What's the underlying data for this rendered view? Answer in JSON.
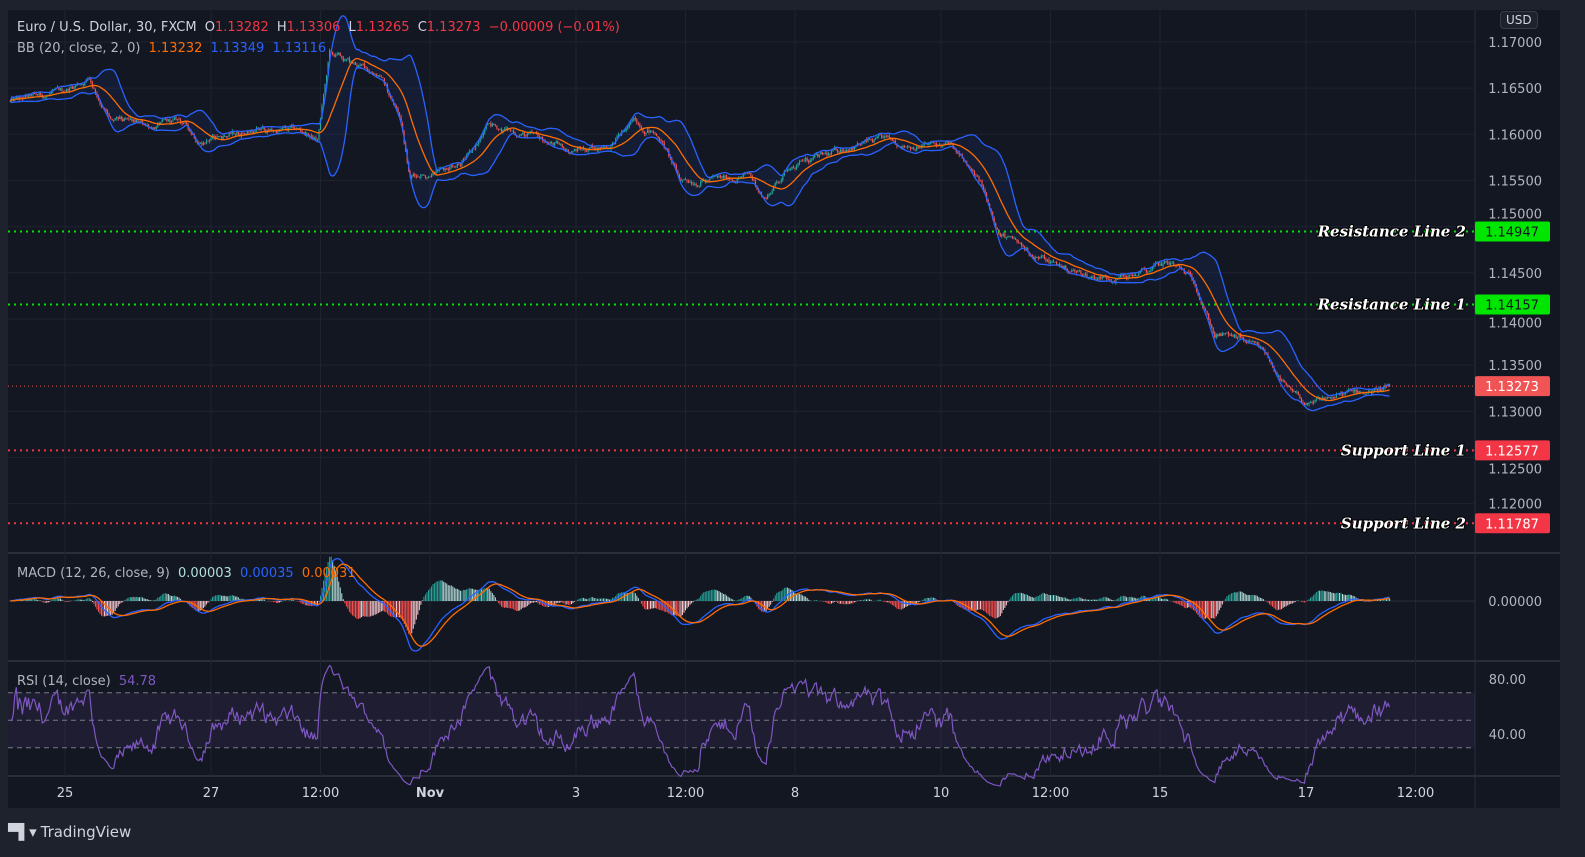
{
  "header": {
    "symbol": "Euro / U.S. Dollar, 30, FXCM",
    "open_label": "O",
    "open": "1.13282",
    "high_label": "H",
    "high": "1.13306",
    "low_label": "L",
    "low": "1.13265",
    "close_label": "C",
    "close": "1.13273",
    "change": "−0.00009 (−0.01%)"
  },
  "bb_legend": {
    "label": "BB (20, close, 2, 0)",
    "basis": "1.13232",
    "upper": "1.13349",
    "lower": "1.13116"
  },
  "macd_legend": {
    "label": "MACD (12, 26, close, 9)",
    "hist": "0.00003",
    "macd": "0.00035",
    "signal": "0.00031"
  },
  "rsi_legend": {
    "label": "RSI (14, close)",
    "value": "54.78"
  },
  "currency": "USD",
  "footer": {
    "brand": "TradingView"
  },
  "colors": {
    "up": "#26a69a",
    "down": "#ef5350",
    "bb_basis": "#ff6d00",
    "bb_band": "#2962ff",
    "macd": "#2962ff",
    "signal": "#ff6d00",
    "rsi": "#7e57c2",
    "resistance": "#00e600",
    "support": "#f23645",
    "last_price": "#f05454"
  },
  "chart_data": {
    "type": "candlestick",
    "ylim": [
      1.11465,
      1.17346
    ],
    "grid": true,
    "price_ticks": [
      "1.17000",
      "1.16500",
      "1.16000",
      "1.15500",
      "1.15000",
      "1.14500",
      "1.14000",
      "1.13500",
      "1.13000",
      "1.12500",
      "1.12000"
    ],
    "time_ticks": [
      {
        "label": "25",
        "t": "Oct 25 00:00"
      },
      {
        "label": "27",
        "t": "Oct 27 00:00"
      },
      {
        "label": "12:00",
        "t": "Oct 28 12:00"
      },
      {
        "label": "Nov",
        "t": "Nov 1 00:00"
      },
      {
        "label": "3",
        "t": "Nov 3 00:00"
      },
      {
        "label": "12:00",
        "t": "Nov 4 12:00"
      },
      {
        "label": "8",
        "t": "Nov 8 00:00"
      },
      {
        "label": "10",
        "t": "Nov 10 00:00"
      },
      {
        "label": "12:00",
        "t": "Nov 11 12:00"
      },
      {
        "label": "15",
        "t": "Nov 15 00:00"
      },
      {
        "label": "17",
        "t": "Nov 17 00:00"
      },
      {
        "label": "12:00",
        "t": "Nov 18 12:00"
      }
    ],
    "close_path": [
      {
        "t": "Oct 22 06:00",
        "close": 1.1635
      },
      {
        "t": "Oct 22 22:30",
        "close": 1.1645
      },
      {
        "t": "Oct 25 08:00",
        "close": 1.1661
      },
      {
        "t": "Oct 25 15:00",
        "close": 1.1614
      },
      {
        "t": "Oct 26 04:00",
        "close": 1.1609
      },
      {
        "t": "Oct 26 14:00",
        "close": 1.1614
      },
      {
        "t": "Oct 26 20:30",
        "close": 1.1593
      },
      {
        "t": "Oct 27 13:00",
        "close": 1.1604
      },
      {
        "t": "Oct 28 05:00",
        "close": 1.1604
      },
      {
        "t": "Oct 28 11:00",
        "close": 1.1593
      },
      {
        "t": "Oct 28 15:00",
        "close": 1.1687
      },
      {
        "t": "Oct 28 21:30",
        "close": 1.1677
      },
      {
        "t": "Oct 29 07:30",
        "close": 1.1666
      },
      {
        "t": "Oct 29 14:00",
        "close": 1.1619
      },
      {
        "t": "Oct 29 17:30",
        "close": 1.1556
      },
      {
        "t": "Nov 1 03:30",
        "close": 1.1562
      },
      {
        "t": "Nov 1 13:00",
        "close": 1.1577
      },
      {
        "t": "Nov 1 19:30",
        "close": 1.1609
      },
      {
        "t": "Nov 2 09:00",
        "close": 1.1598
      },
      {
        "t": "Nov 2 22:00",
        "close": 1.1583
      },
      {
        "t": "Nov 3 11:00",
        "close": 1.1588
      },
      {
        "t": "Nov 3 19:30",
        "close": 1.1614
      },
      {
        "t": "Nov 4 03:30",
        "close": 1.1598
      },
      {
        "t": "Nov 4 10:00",
        "close": 1.1551
      },
      {
        "t": "Nov 4 23:30",
        "close": 1.1551
      },
      {
        "t": "Nov 5 09:00",
        "close": 1.1556
      },
      {
        "t": "Nov 5 14:00",
        "close": 1.153
      },
      {
        "t": "Nov 5 22:30",
        "close": 1.1567
      },
      {
        "t": "Nov 8 11:30",
        "close": 1.1577
      },
      {
        "t": "Nov 8 18:00",
        "close": 1.1588
      },
      {
        "t": "Nov 9 04:00",
        "close": 1.1593
      },
      {
        "t": "Nov 9 17:00",
        "close": 1.1588
      },
      {
        "t": "Nov 10 03:00",
        "close": 1.1588
      },
      {
        "t": "Nov 10 13:00",
        "close": 1.1546
      },
      {
        "t": "Nov 10 19:30",
        "close": 1.1493
      },
      {
        "t": "Nov 11 05:00",
        "close": 1.1472
      },
      {
        "t": "Nov 11 15:00",
        "close": 1.1457
      },
      {
        "t": "Nov 12 01:00",
        "close": 1.1446
      },
      {
        "t": "Nov 12 14:00",
        "close": 1.1446
      },
      {
        "t": "Nov 15 03:30",
        "close": 1.146
      },
      {
        "t": "Nov 15 11:30",
        "close": 1.1441
      },
      {
        "t": "Nov 15 18:00",
        "close": 1.1383
      },
      {
        "t": "Nov 16 02:30",
        "close": 1.1378
      },
      {
        "t": "Nov 16 10:30",
        "close": 1.1362
      },
      {
        "t": "Nov 16 18:30",
        "close": 1.1321
      },
      {
        "t": "Nov 17 01:30",
        "close": 1.1305
      },
      {
        "t": "Nov 17 08:00",
        "close": 1.1315
      },
      {
        "t": "Nov 17 18:00",
        "close": 1.1321
      },
      {
        "t": "Nov 18 03:30",
        "close": 1.13273
      }
    ],
    "levels": [
      {
        "name": "Resistance Line 2",
        "price": "1.14947",
        "kind": "resistance"
      },
      {
        "name": "Resistance Line 1",
        "price": "1.14157",
        "kind": "resistance"
      },
      {
        "name": "Support Line 1",
        "price": "1.12577",
        "kind": "support"
      },
      {
        "name": "Support Line 2",
        "price": "1.11787",
        "kind": "support"
      }
    ],
    "last_price": "1.13273",
    "macd_ticks": [
      "0.00000"
    ],
    "rsi_ticks": [
      "80.00",
      "40.00"
    ],
    "rsi_bands": [
      70,
      50,
      30
    ]
  }
}
